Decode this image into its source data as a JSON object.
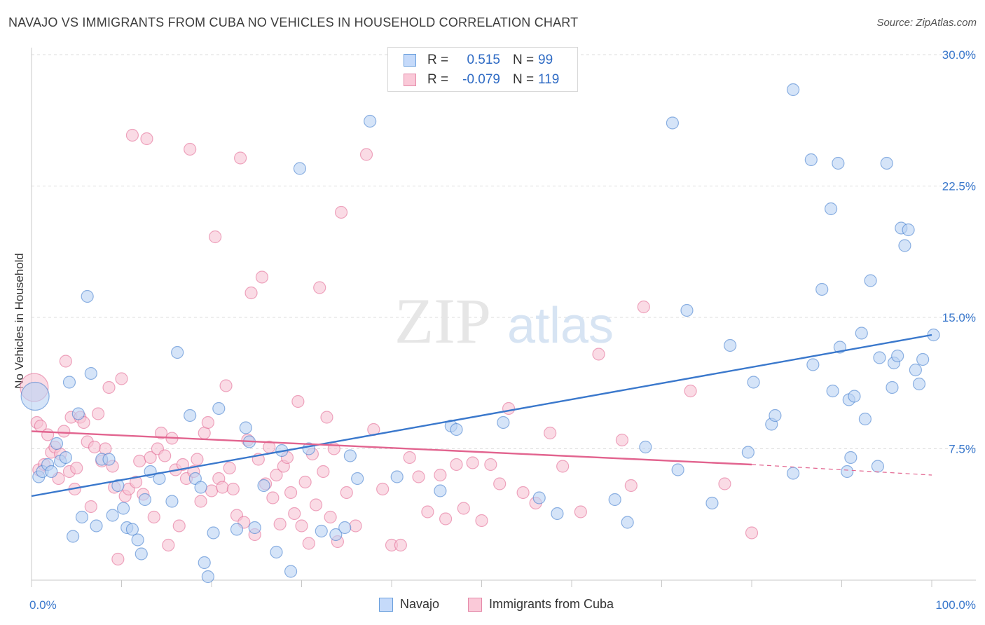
{
  "title": "NAVAJO VS IMMIGRANTS FROM CUBA NO VEHICLES IN HOUSEHOLD CORRELATION CHART",
  "source": "Source: ZipAtlas.com",
  "watermark": {
    "zip": "ZIP",
    "atlas": "atlas"
  },
  "stats": [
    {
      "r_label": "R =",
      "r_value": "0.515",
      "n_label": "N =",
      "n_value": "99",
      "color": "#6a9fdd",
      "fill": "#c5dafa"
    },
    {
      "r_label": "R =",
      "r_value": "-0.079",
      "n_label": "N =",
      "n_value": "119",
      "color": "#e58aa9",
      "fill": "#fac9d8"
    }
  ],
  "legend": [
    {
      "label": "Navajo",
      "color": "#6a9fdd",
      "fill": "#c5dafa"
    },
    {
      "label": "Immigrants from Cuba",
      "color": "#e58aa9",
      "fill": "#fac9d8"
    }
  ],
  "chart_data": {
    "type": "scatter",
    "ylabel": "No Vehicles in Household",
    "xlim": [
      0,
      100
    ],
    "ylim": [
      0,
      30
    ],
    "x_tick_labels": [
      "0.0%",
      "100.0%"
    ],
    "y_ticks": [
      7.5,
      15.0,
      22.5,
      30.0
    ],
    "y_tick_labels": [
      "7.5%",
      "15.0%",
      "22.5%",
      "30.0%"
    ],
    "grid": true,
    "series": [
      {
        "name": "Navajo",
        "color": "#3a78cc",
        "point_fill": "#b9d2f3",
        "trend": {
          "x": [
            0,
            100
          ],
          "y": [
            4.8,
            14.0
          ]
        },
        "points": [
          [
            0.4,
            10.5
          ],
          [
            0.8,
            5.9
          ],
          [
            1.2,
            6.2
          ],
          [
            1.8,
            6.6
          ],
          [
            2.2,
            6.2
          ],
          [
            2.8,
            7.8
          ],
          [
            3.2,
            6.8
          ],
          [
            3.8,
            7.0
          ],
          [
            4.2,
            11.3
          ],
          [
            4.6,
            2.5
          ],
          [
            5.2,
            9.5
          ],
          [
            5.6,
            3.6
          ],
          [
            6.2,
            16.2
          ],
          [
            6.6,
            11.8
          ],
          [
            7.2,
            3.1
          ],
          [
            7.8,
            6.9
          ],
          [
            8.6,
            6.9
          ],
          [
            9.0,
            3.7
          ],
          [
            9.6,
            5.4
          ],
          [
            10.2,
            4.1
          ],
          [
            10.6,
            3.0
          ],
          [
            11.2,
            2.9
          ],
          [
            11.8,
            2.3
          ],
          [
            12.2,
            1.5
          ],
          [
            12.6,
            4.6
          ],
          [
            13.2,
            6.2
          ],
          [
            14.2,
            5.8
          ],
          [
            15.6,
            4.5
          ],
          [
            16.2,
            13.0
          ],
          [
            17.6,
            9.4
          ],
          [
            18.2,
            5.8
          ],
          [
            18.8,
            5.3
          ],
          [
            19.2,
            1.0
          ],
          [
            19.6,
            0.2
          ],
          [
            20.2,
            2.7
          ],
          [
            20.8,
            9.8
          ],
          [
            22.8,
            2.9
          ],
          [
            23.8,
            8.7
          ],
          [
            24.2,
            7.9
          ],
          [
            24.8,
            3.0
          ],
          [
            25.8,
            5.4
          ],
          [
            27.2,
            1.6
          ],
          [
            27.8,
            7.4
          ],
          [
            28.8,
            0.5
          ],
          [
            29.8,
            23.5
          ],
          [
            30.8,
            7.5
          ],
          [
            32.2,
            2.8
          ],
          [
            33.8,
            2.6
          ],
          [
            34.8,
            3.0
          ],
          [
            35.4,
            7.1
          ],
          [
            36.2,
            5.8
          ],
          [
            37.6,
            26.2
          ],
          [
            40.6,
            5.9
          ],
          [
            45.4,
            5.1
          ],
          [
            46.6,
            8.8
          ],
          [
            47.2,
            8.6
          ],
          [
            52.4,
            9.0
          ],
          [
            56.4,
            4.7
          ],
          [
            58.4,
            3.8
          ],
          [
            64.8,
            4.6
          ],
          [
            66.2,
            3.3
          ],
          [
            68.2,
            7.6
          ],
          [
            71.2,
            26.1
          ],
          [
            71.8,
            6.3
          ],
          [
            72.8,
            15.4
          ],
          [
            75.6,
            4.4
          ],
          [
            77.6,
            13.4
          ],
          [
            79.6,
            7.3
          ],
          [
            80.2,
            11.3
          ],
          [
            82.2,
            8.9
          ],
          [
            82.6,
            9.4
          ],
          [
            84.6,
            28.0
          ],
          [
            84.6,
            6.1
          ],
          [
            86.6,
            24.0
          ],
          [
            86.8,
            12.3
          ],
          [
            87.8,
            16.6
          ],
          [
            88.8,
            21.2
          ],
          [
            89.0,
            10.8
          ],
          [
            89.6,
            23.8
          ],
          [
            89.8,
            13.3
          ],
          [
            90.6,
            6.2
          ],
          [
            90.8,
            10.3
          ],
          [
            91.0,
            7.0
          ],
          [
            91.4,
            10.5
          ],
          [
            92.2,
            14.1
          ],
          [
            92.6,
            9.2
          ],
          [
            93.2,
            17.1
          ],
          [
            94.0,
            6.5
          ],
          [
            94.2,
            12.7
          ],
          [
            95.0,
            23.8
          ],
          [
            95.6,
            11.0
          ],
          [
            95.8,
            12.4
          ],
          [
            96.2,
            12.8
          ],
          [
            96.6,
            20.1
          ],
          [
            97.0,
            19.1
          ],
          [
            97.4,
            20.0
          ],
          [
            98.2,
            12.0
          ],
          [
            98.6,
            11.2
          ],
          [
            99.0,
            12.6
          ],
          [
            100.2,
            14.0
          ]
        ]
      },
      {
        "name": "Immigrants from Cuba",
        "color": "#e2648f",
        "point_fill": "#f7c3d3",
        "trend": {
          "x": [
            0,
            80
          ],
          "y": [
            8.5,
            6.6
          ],
          "dashed_to": [
            100,
            6.0
          ]
        },
        "points": [
          [
            0.3,
            11.0
          ],
          [
            0.6,
            9.0
          ],
          [
            0.8,
            6.3
          ],
          [
            1.0,
            8.8
          ],
          [
            1.4,
            6.6
          ],
          [
            1.8,
            8.3
          ],
          [
            2.2,
            7.3
          ],
          [
            2.6,
            7.6
          ],
          [
            3.0,
            5.8
          ],
          [
            3.2,
            7.2
          ],
          [
            3.6,
            8.5
          ],
          [
            3.8,
            12.5
          ],
          [
            4.2,
            6.2
          ],
          [
            4.4,
            9.3
          ],
          [
            4.8,
            5.2
          ],
          [
            5.0,
            6.4
          ],
          [
            5.4,
            9.3
          ],
          [
            5.8,
            9.0
          ],
          [
            6.2,
            7.9
          ],
          [
            6.6,
            4.2
          ],
          [
            7.0,
            7.6
          ],
          [
            7.4,
            9.5
          ],
          [
            7.8,
            6.8
          ],
          [
            8.2,
            7.5
          ],
          [
            8.6,
            11.0
          ],
          [
            9.0,
            6.5
          ],
          [
            9.2,
            5.3
          ],
          [
            9.6,
            1.2
          ],
          [
            10.0,
            11.5
          ],
          [
            10.4,
            4.8
          ],
          [
            10.8,
            5.2
          ],
          [
            11.2,
            25.4
          ],
          [
            11.6,
            5.6
          ],
          [
            12.0,
            6.8
          ],
          [
            12.4,
            4.9
          ],
          [
            12.8,
            25.2
          ],
          [
            13.2,
            7.0
          ],
          [
            13.6,
            3.6
          ],
          [
            14.0,
            7.5
          ],
          [
            14.4,
            8.4
          ],
          [
            14.8,
            7.1
          ],
          [
            15.2,
            2.0
          ],
          [
            15.6,
            8.1
          ],
          [
            16.0,
            6.3
          ],
          [
            16.4,
            3.1
          ],
          [
            16.8,
            6.6
          ],
          [
            17.2,
            5.8
          ],
          [
            17.6,
            24.6
          ],
          [
            18.0,
            6.2
          ],
          [
            18.4,
            6.9
          ],
          [
            18.8,
            4.5
          ],
          [
            19.2,
            8.4
          ],
          [
            19.6,
            9.0
          ],
          [
            20.0,
            5.1
          ],
          [
            20.4,
            19.6
          ],
          [
            20.8,
            5.8
          ],
          [
            21.2,
            5.3
          ],
          [
            21.6,
            11.1
          ],
          [
            22.0,
            6.4
          ],
          [
            22.4,
            5.2
          ],
          [
            22.8,
            3.7
          ],
          [
            23.2,
            24.1
          ],
          [
            23.6,
            3.3
          ],
          [
            24.0,
            8.0
          ],
          [
            24.4,
            16.4
          ],
          [
            24.8,
            2.6
          ],
          [
            25.2,
            6.9
          ],
          [
            25.6,
            17.3
          ],
          [
            26.0,
            5.5
          ],
          [
            26.4,
            7.6
          ],
          [
            26.8,
            4.7
          ],
          [
            27.2,
            6.0
          ],
          [
            27.6,
            3.2
          ],
          [
            28.0,
            6.5
          ],
          [
            28.4,
            7.0
          ],
          [
            28.8,
            5.0
          ],
          [
            29.2,
            3.8
          ],
          [
            29.6,
            10.2
          ],
          [
            30.0,
            3.1
          ],
          [
            30.4,
            5.6
          ],
          [
            30.8,
            2.1
          ],
          [
            31.2,
            7.2
          ],
          [
            31.6,
            4.3
          ],
          [
            32.0,
            16.7
          ],
          [
            32.4,
            6.2
          ],
          [
            32.8,
            9.3
          ],
          [
            33.2,
            3.6
          ],
          [
            33.6,
            7.5
          ],
          [
            34.0,
            2.2
          ],
          [
            34.4,
            21.0
          ],
          [
            35.0,
            5.0
          ],
          [
            36.0,
            3.1
          ],
          [
            37.2,
            24.3
          ],
          [
            38.0,
            8.6
          ],
          [
            39.0,
            5.2
          ],
          [
            40.0,
            2.0
          ],
          [
            41.0,
            2.0
          ],
          [
            42.0,
            7.0
          ],
          [
            43.0,
            5.9
          ],
          [
            44.0,
            3.9
          ],
          [
            45.4,
            6.0
          ],
          [
            46.0,
            3.5
          ],
          [
            47.2,
            6.6
          ],
          [
            48.0,
            4.1
          ],
          [
            49.0,
            6.7
          ],
          [
            50.0,
            3.4
          ],
          [
            51.0,
            6.6
          ],
          [
            52.0,
            5.5
          ],
          [
            53.0,
            9.8
          ],
          [
            54.6,
            5.0
          ],
          [
            56.0,
            4.4
          ],
          [
            57.6,
            8.4
          ],
          [
            59.0,
            6.5
          ],
          [
            61.0,
            3.9
          ],
          [
            63.0,
            12.9
          ],
          [
            65.6,
            8.0
          ],
          [
            66.6,
            5.4
          ],
          [
            68.0,
            15.6
          ],
          [
            73.2,
            10.8
          ],
          [
            77.0,
            5.5
          ],
          [
            80.0,
            2.7
          ]
        ]
      }
    ]
  }
}
